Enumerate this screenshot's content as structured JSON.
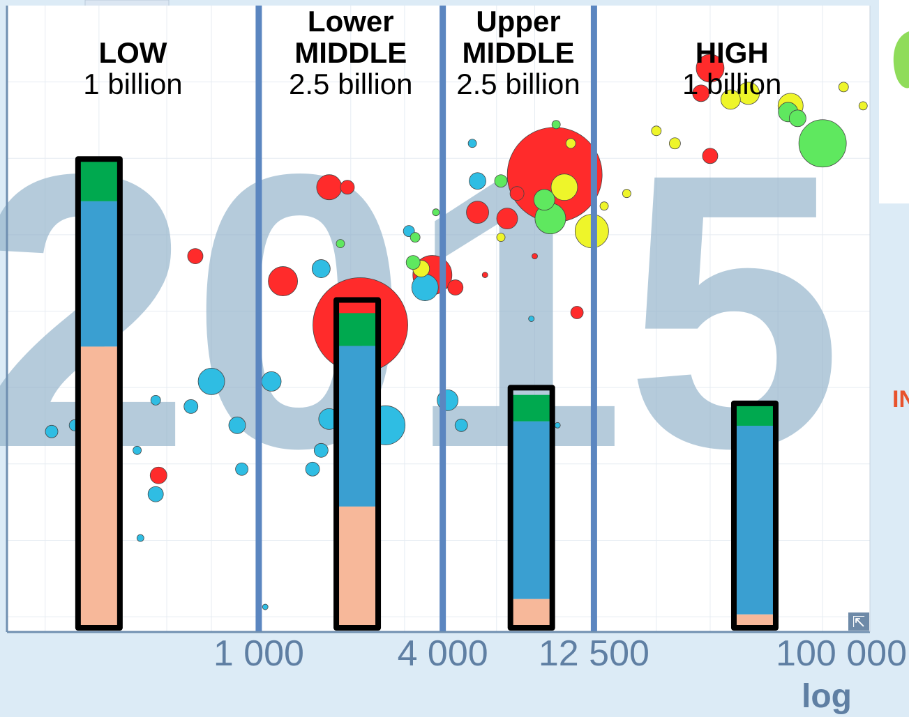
{
  "chart_data": {
    "type": "scatter",
    "title": "",
    "year": "2015",
    "xlabel": "",
    "x_scale": "log",
    "x_scale_label": "log",
    "xlim": [
      150,
      100000
    ],
    "x_ticks": [
      {
        "value": 1000,
        "label": "1 000"
      },
      {
        "value": 4000,
        "label": "4 000"
      },
      {
        "value": 12500,
        "label": "12 500"
      },
      {
        "value": 100000,
        "label": "100 000"
      }
    ],
    "income_brackets": [
      {
        "title_lines": [
          "LOW"
        ],
        "population": "1 billion",
        "x_range": [
          150,
          1000
        ],
        "bar_x": 300,
        "composition": [
          0.6,
          0.31,
          0.09
        ],
        "bar_top_fraction": 0.755
      },
      {
        "title_lines": [
          "Lower",
          "MIDDLE"
        ],
        "population": "2.5 billion",
        "x_range": [
          1000,
          4000
        ],
        "bar_x": 2100,
        "composition": [
          0.37,
          0.49,
          0.1
        ],
        "bar_top_fraction": 0.53
      },
      {
        "title_lines": [
          "Upper",
          "MIDDLE"
        ],
        "population": "2.5 billion",
        "x_range": [
          4000,
          12500
        ],
        "bar_x": 7800,
        "composition": [
          0.12,
          0.74,
          0.11
        ],
        "bar_top_fraction": 0.39
      },
      {
        "title_lines": [
          "HIGH"
        ],
        "population": "1 billion",
        "x_range": [
          12500,
          100000
        ],
        "bar_x": 42000,
        "composition": [
          0.06,
          0.84,
          0.1
        ],
        "bar_top_fraction": 0.365
      }
    ],
    "bar_segment_colors": [
      "#f7b89a",
      "#3a9fd1",
      "#00a94f"
    ],
    "region_colors": {
      "blue": "#2fbde3",
      "red": "#ff2b2b",
      "green": "#5fe85f",
      "yellow": "#eef52a"
    },
    "bubbles": [
      {
        "x": 2150,
        "y": 0.49,
        "r": 68,
        "c": "red"
      },
      {
        "x": 9300,
        "y": 0.73,
        "r": 68,
        "c": "red"
      },
      {
        "x": 70000,
        "y": 0.78,
        "r": 34,
        "c": "green"
      },
      {
        "x": 12300,
        "y": 0.64,
        "r": 24,
        "c": "yellow"
      },
      {
        "x": 9000,
        "y": 0.66,
        "r": 22,
        "c": "green"
      },
      {
        "x": 2600,
        "y": 0.33,
        "r": 28,
        "c": "blue"
      },
      {
        "x": 3700,
        "y": 0.57,
        "r": 28,
        "c": "red"
      },
      {
        "x": 1200,
        "y": 0.56,
        "r": 21,
        "c": "red"
      },
      {
        "x": 3500,
        "y": 0.55,
        "r": 19,
        "c": "blue"
      },
      {
        "x": 700,
        "y": 0.4,
        "r": 19,
        "c": "blue"
      },
      {
        "x": 10000,
        "y": 0.71,
        "r": 19,
        "c": "yellow"
      },
      {
        "x": 5200,
        "y": 0.67,
        "r": 16,
        "c": "red"
      },
      {
        "x": 1700,
        "y": 0.71,
        "r": 18,
        "c": "red"
      },
      {
        "x": 30000,
        "y": 0.9,
        "r": 20,
        "c": "red"
      },
      {
        "x": 55000,
        "y": 0.84,
        "r": 18,
        "c": "yellow"
      },
      {
        "x": 40000,
        "y": 0.86,
        "r": 16,
        "c": "yellow"
      },
      {
        "x": 35000,
        "y": 0.85,
        "r": 14,
        "c": "yellow"
      },
      {
        "x": 54000,
        "y": 0.83,
        "r": 14,
        "c": "green"
      },
      {
        "x": 58000,
        "y": 0.82,
        "r": 12,
        "c": "green"
      },
      {
        "x": 4150,
        "y": 0.37,
        "r": 15,
        "c": "blue"
      },
      {
        "x": 8600,
        "y": 0.69,
        "r": 15,
        "c": "green"
      },
      {
        "x": 6500,
        "y": 0.66,
        "r": 15,
        "c": "red"
      },
      {
        "x": 1700,
        "y": 0.34,
        "r": 15,
        "c": "blue"
      },
      {
        "x": 2300,
        "y": 0.45,
        "r": 13,
        "c": "blue"
      },
      {
        "x": 1600,
        "y": 0.58,
        "r": 13,
        "c": "blue"
      },
      {
        "x": 1100,
        "y": 0.4,
        "r": 14,
        "c": "blue"
      },
      {
        "x": 2000,
        "y": 0.47,
        "r": 11,
        "c": "blue"
      },
      {
        "x": 850,
        "y": 0.33,
        "r": 12,
        "c": "blue"
      },
      {
        "x": 3400,
        "y": 0.58,
        "r": 12,
        "c": "yellow"
      },
      {
        "x": 5200,
        "y": 0.72,
        "r": 12,
        "c": "blue"
      },
      {
        "x": 3200,
        "y": 0.59,
        "r": 10,
        "c": "green"
      },
      {
        "x": 28000,
        "y": 0.86,
        "r": 12,
        "c": "red"
      },
      {
        "x": 30000,
        "y": 0.76,
        "r": 11,
        "c": "red"
      },
      {
        "x": 7000,
        "y": 0.7,
        "r": 10,
        "c": "red"
      },
      {
        "x": 6200,
        "y": 0.72,
        "r": 9,
        "c": "green"
      },
      {
        "x": 4400,
        "y": 0.55,
        "r": 11,
        "c": "red"
      },
      {
        "x": 1950,
        "y": 0.71,
        "r": 10,
        "c": "red"
      },
      {
        "x": 11000,
        "y": 0.51,
        "r": 9,
        "c": "red"
      },
      {
        "x": 470,
        "y": 0.25,
        "r": 12,
        "c": "red"
      },
      {
        "x": 1500,
        "y": 0.26,
        "r": 10,
        "c": "blue"
      },
      {
        "x": 1600,
        "y": 0.29,
        "r": 10,
        "c": "blue"
      },
      {
        "x": 4600,
        "y": 0.33,
        "r": 9,
        "c": "blue"
      },
      {
        "x": 600,
        "y": 0.36,
        "r": 10,
        "c": "blue"
      },
      {
        "x": 460,
        "y": 0.22,
        "r": 11,
        "c": "blue"
      },
      {
        "x": 620,
        "y": 0.6,
        "r": 11,
        "c": "red"
      },
      {
        "x": 210,
        "y": 0.32,
        "r": 9,
        "c": "blue"
      },
      {
        "x": 250,
        "y": 0.33,
        "r": 8,
        "c": "blue"
      },
      {
        "x": 880,
        "y": 0.26,
        "r": 9,
        "c": "blue"
      },
      {
        "x": 3100,
        "y": 0.64,
        "r": 8,
        "c": "blue"
      },
      {
        "x": 3250,
        "y": 0.63,
        "r": 7,
        "c": "green"
      },
      {
        "x": 23000,
        "y": 0.78,
        "r": 8,
        "c": "yellow"
      },
      {
        "x": 20000,
        "y": 0.8,
        "r": 7,
        "c": "yellow"
      },
      {
        "x": 82000,
        "y": 0.87,
        "r": 7,
        "c": "yellow"
      },
      {
        "x": 95000,
        "y": 0.84,
        "r": 6,
        "c": "yellow"
      },
      {
        "x": 10500,
        "y": 0.78,
        "r": 7,
        "c": "yellow"
      },
      {
        "x": 9400,
        "y": 0.81,
        "r": 6,
        "c": "green"
      },
      {
        "x": 16000,
        "y": 0.7,
        "r": 6,
        "c": "yellow"
      },
      {
        "x": 13500,
        "y": 0.68,
        "r": 6,
        "c": "yellow"
      },
      {
        "x": 3800,
        "y": 0.67,
        "r": 5,
        "c": "green"
      },
      {
        "x": 5000,
        "y": 0.78,
        "r": 6,
        "c": "blue"
      },
      {
        "x": 6200,
        "y": 0.63,
        "r": 6,
        "c": "yellow"
      },
      {
        "x": 1850,
        "y": 0.62,
        "r": 6,
        "c": "green"
      },
      {
        "x": 400,
        "y": 0.29,
        "r": 6,
        "c": "blue"
      },
      {
        "x": 460,
        "y": 0.37,
        "r": 7,
        "c": "blue"
      },
      {
        "x": 410,
        "y": 0.15,
        "r": 5,
        "c": "blue"
      },
      {
        "x": 1050,
        "y": 0.04,
        "r": 4,
        "c": "blue"
      },
      {
        "x": 5500,
        "y": 0.57,
        "r": 4,
        "c": "red"
      },
      {
        "x": 8000,
        "y": 0.6,
        "r": 4,
        "c": "red"
      },
      {
        "x": 7800,
        "y": 0.5,
        "r": 4,
        "c": "blue"
      },
      {
        "x": 9500,
        "y": 0.33,
        "r": 4,
        "c": "blue"
      }
    ]
  },
  "ui": {
    "expand_button": "⇱",
    "side_label": "IN"
  }
}
